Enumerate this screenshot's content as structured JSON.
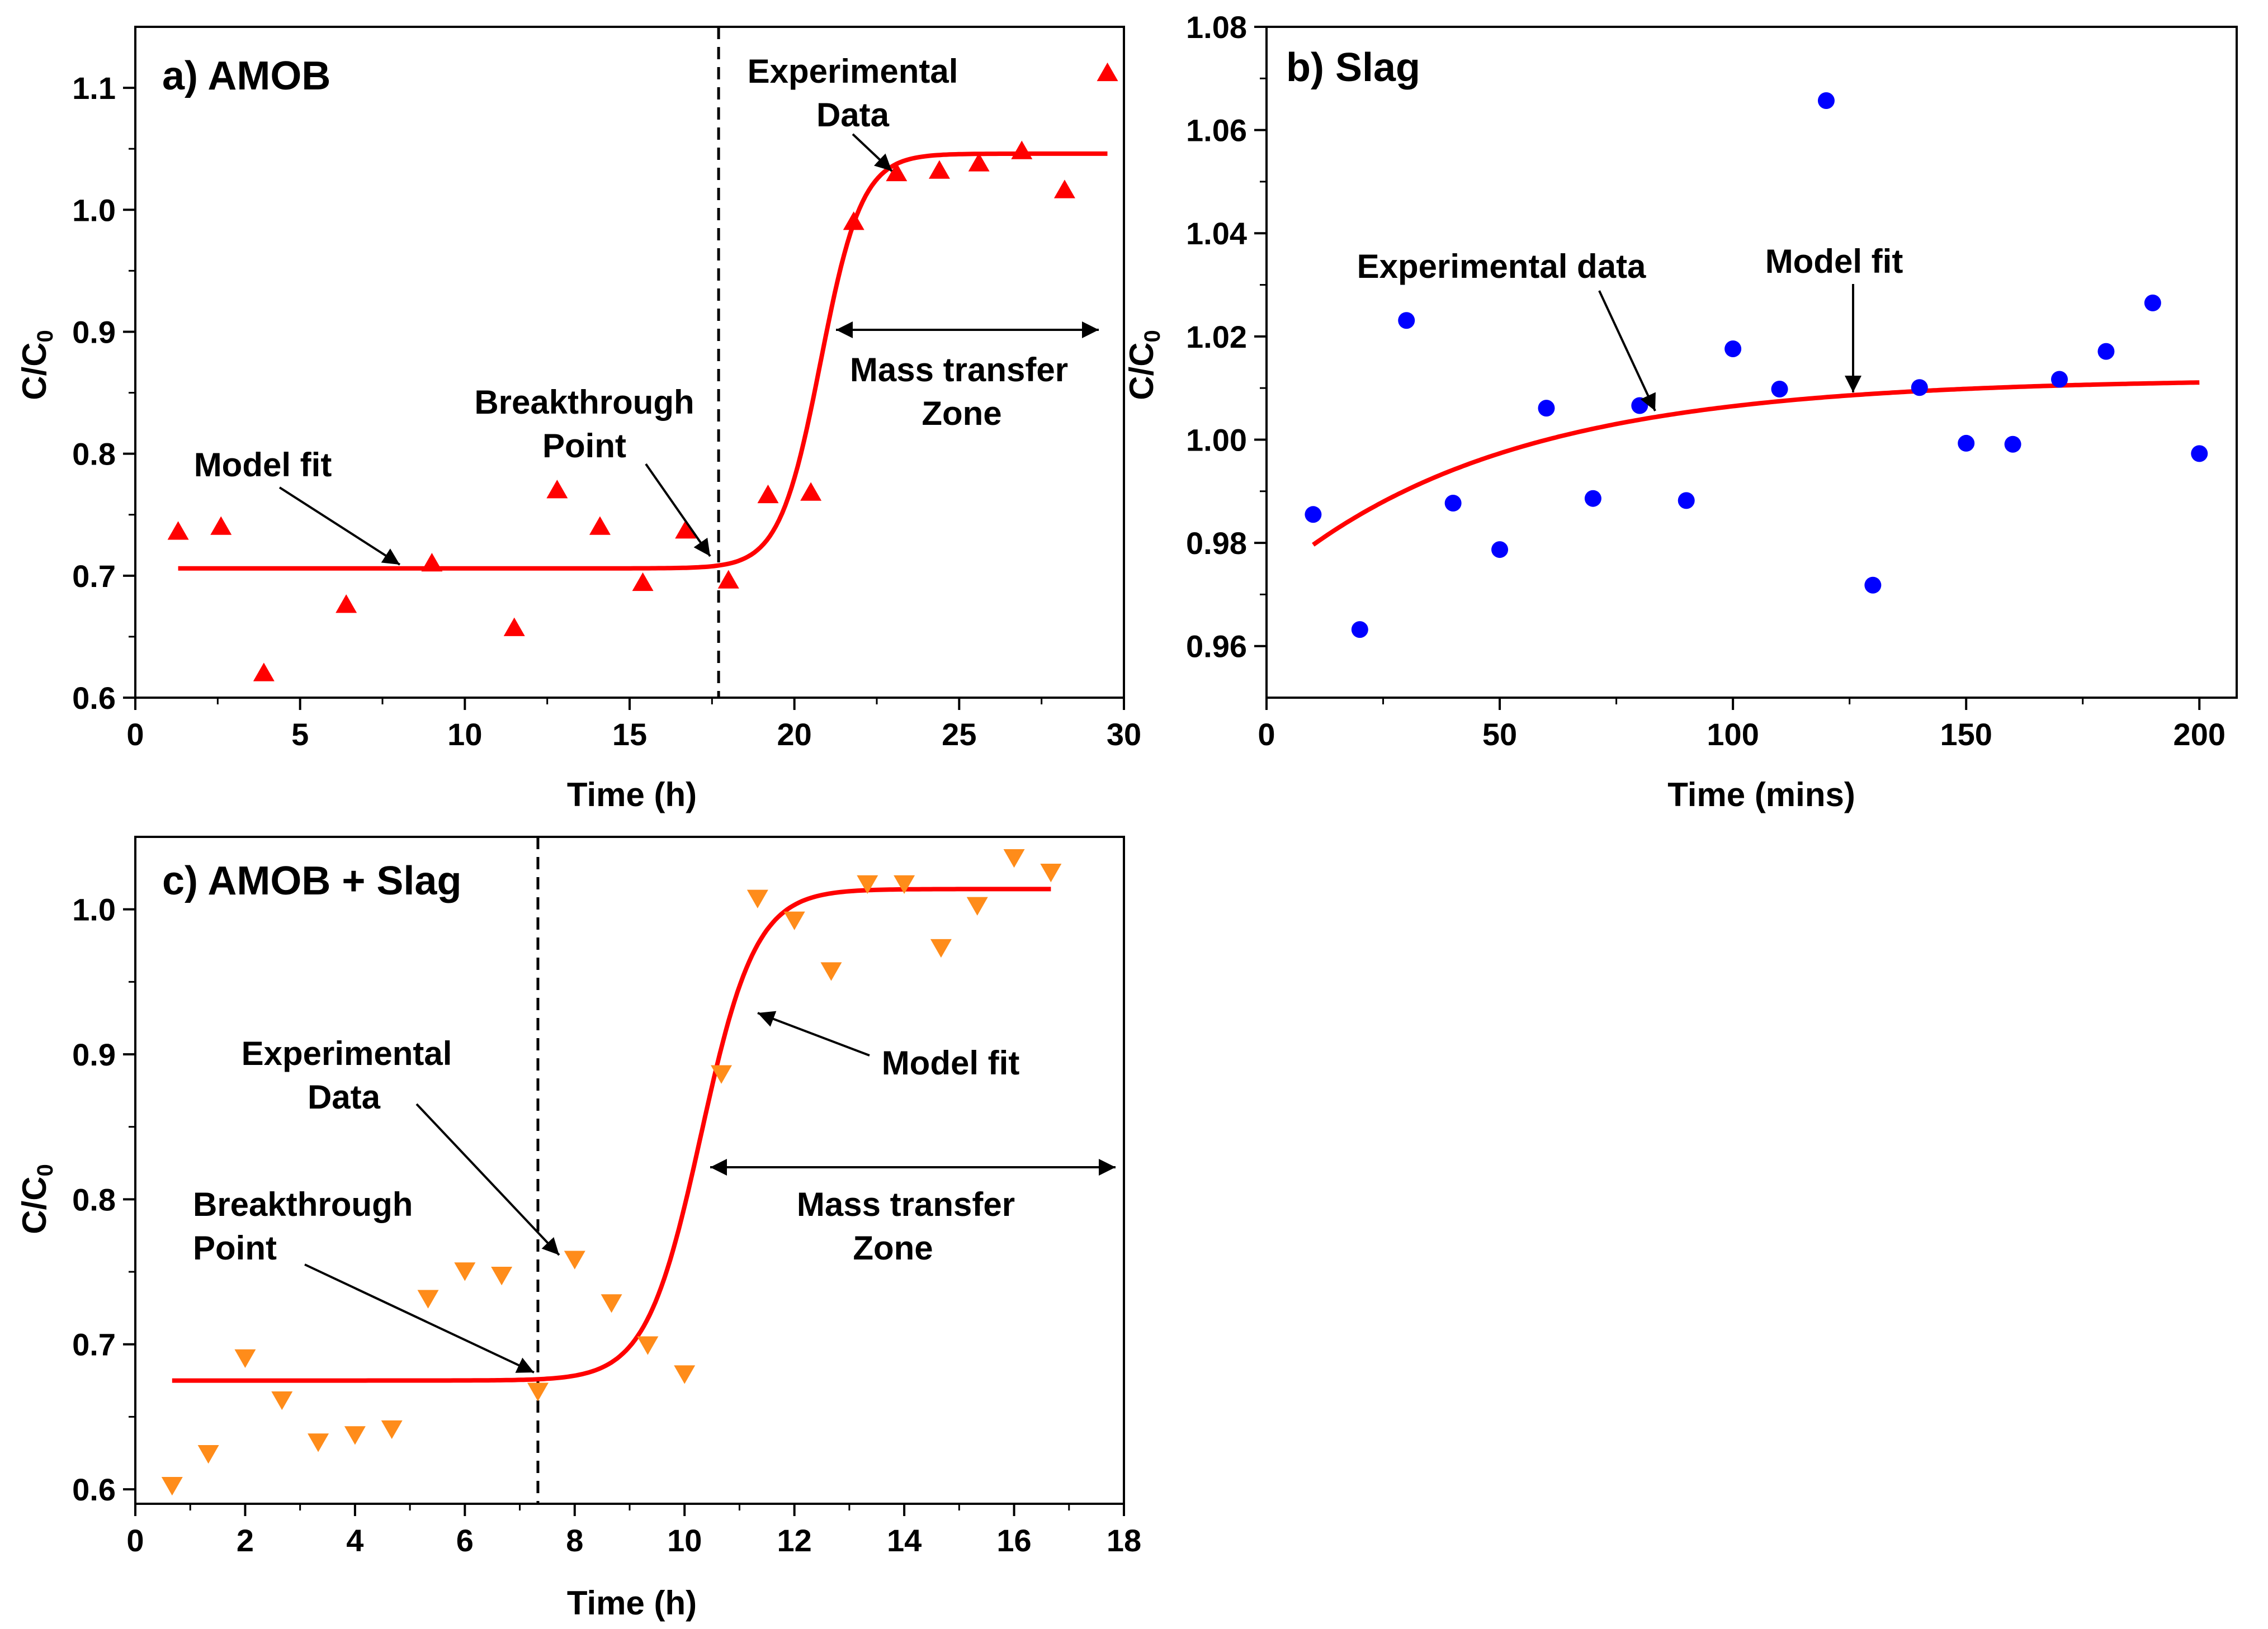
{
  "chart_data": [
    {
      "type": "scatter",
      "panel_label": "a) AMOB",
      "xlabel": "Time (h)",
      "ylabel_main": "C/C",
      "ylabel_sub": "0",
      "xlim": [
        0,
        30
      ],
      "ylim": [
        0.6,
        1.15
      ],
      "x_ticks": [
        0,
        5,
        10,
        15,
        20,
        25,
        30
      ],
      "x_tick_labels": [
        "0",
        "5",
        "10",
        "15",
        "20",
        "25",
        "30"
      ],
      "y_ticks": [
        0.6,
        0.7,
        0.8,
        0.9,
        1.0,
        1.1
      ],
      "y_tick_labels": [
        "0.6",
        "0.7",
        "0.8",
        "0.9",
        "1.0",
        "1.1"
      ],
      "marker": "triangle-up",
      "marker_color": "#ff0000",
      "fit_color": "#ff0000",
      "series": [
        {
          "name": "Experimental Data",
          "x": [
            1.3,
            2.6,
            3.9,
            6.4,
            9.0,
            11.5,
            12.8,
            14.1,
            15.4,
            16.7,
            18.0,
            19.2,
            20.5,
            21.8,
            23.1,
            24.4,
            25.6,
            26.9,
            28.2,
            29.5
          ],
          "y": [
            0.736,
            0.74,
            0.62,
            0.676,
            0.71,
            0.657,
            0.77,
            0.74,
            0.694,
            0.737,
            0.696,
            0.766,
            0.768,
            0.99,
            1.03,
            1.032,
            1.038,
            1.048,
            1.016,
            1.112
          ]
        },
        {
          "name": "Model fit",
          "model": "logistic",
          "y_low": 0.706,
          "y_high": 1.046,
          "midpoint": 20.8,
          "steepness": 1.6,
          "x_range": [
            1.3,
            29.5
          ]
        }
      ],
      "vline": 17.7,
      "annotations": [
        {
          "text": "Experimental",
          "text2": "Data"
        },
        {
          "text": "Breakthrough",
          "text2": "Point"
        },
        {
          "text": "Model fit",
          "text2": ""
        },
        {
          "text": "Mass transfer",
          "text2": "Zone"
        }
      ]
    },
    {
      "type": "scatter",
      "panel_label": "b) Slag",
      "xlabel": "Time (mins)",
      "ylabel_main": "C/C",
      "ylabel_sub": "0",
      "xlim": [
        0,
        208
      ],
      "ylim": [
        0.95,
        1.08
      ],
      "x_ticks": [
        0,
        50,
        100,
        150,
        200
      ],
      "x_tick_labels": [
        "0",
        "50",
        "100",
        "150",
        "200"
      ],
      "y_ticks": [
        0.96,
        0.98,
        1.0,
        1.02,
        1.04,
        1.06,
        1.08
      ],
      "y_tick_labels": [
        "0.96",
        "0.98",
        "1.00",
        "1.02",
        "1.04",
        "1.06",
        "1.08"
      ],
      "marker": "circle",
      "marker_color": "#0000ff",
      "fit_color": "#ff0000",
      "series": [
        {
          "name": "Experimental data",
          "x": [
            10,
            20,
            30,
            40,
            50,
            60,
            70,
            80,
            90,
            100,
            110,
            120,
            130,
            140,
            150,
            160,
            170,
            180,
            190,
            200
          ],
          "y": [
            0.9855,
            0.9632,
            1.0231,
            0.9877,
            0.9787,
            1.0061,
            0.9886,
            1.0066,
            0.9882,
            1.0176,
            1.0098,
            1.0657,
            0.9718,
            1.0101,
            0.9993,
            0.9991,
            1.0117,
            1.0171,
            1.0265,
            0.9973
          ]
        },
        {
          "name": "Model fit",
          "model": "exponential",
          "y_low": 0.9725,
          "y_high": 1.0118,
          "rate": 0.02,
          "x_range": [
            10,
            200
          ]
        }
      ],
      "annotations": [
        {
          "text": "Experimental data",
          "text2": ""
        },
        {
          "text": "Model fit",
          "text2": ""
        }
      ]
    },
    {
      "type": "scatter",
      "panel_label": "c) AMOB + Slag",
      "xlabel": "Time (h)",
      "ylabel_main": "C/C",
      "ylabel_sub": "0",
      "xlim": [
        0,
        18
      ],
      "ylim": [
        0.59,
        1.05
      ],
      "x_ticks": [
        0,
        2,
        4,
        6,
        8,
        10,
        12,
        14,
        16,
        18
      ],
      "x_tick_labels": [
        "0",
        "2",
        "4",
        "6",
        "8",
        "10",
        "12",
        "14",
        "16",
        "18"
      ],
      "y_ticks": [
        0.6,
        0.7,
        0.8,
        0.9,
        1.0
      ],
      "y_tick_labels": [
        "0.6",
        "0.7",
        "0.8",
        "0.9",
        "1.0"
      ],
      "marker": "triangle-down",
      "marker_color": "#ff8c1a",
      "fit_color": "#ff0000",
      "series": [
        {
          "name": "Experimental Data",
          "x": [
            0.67,
            1.33,
            2.0,
            2.67,
            3.33,
            4.0,
            4.67,
            5.33,
            6.0,
            6.67,
            7.33,
            8.0,
            8.67,
            9.33,
            10.0,
            10.67,
            11.33,
            12.0,
            12.67,
            13.33,
            14.0,
            14.67,
            15.33,
            16.0,
            16.67
          ],
          "y": [
            0.603,
            0.625,
            0.691,
            0.662,
            0.633,
            0.638,
            0.642,
            0.732,
            0.751,
            0.748,
            0.668,
            0.759,
            0.729,
            0.7,
            0.68,
            0.887,
            1.008,
            0.993,
            0.958,
            1.018,
            1.018,
            0.974,
            1.003,
            1.036,
            1.026
          ]
        },
        {
          "name": "Model fit",
          "model": "logistic",
          "y_low": 0.675,
          "y_high": 1.014,
          "midpoint": 10.3,
          "steepness": 2.0,
          "x_range": [
            0.67,
            16.67
          ]
        }
      ],
      "vline": 7.33,
      "annotations": [
        {
          "text": "Experimental",
          "text2": "Data"
        },
        {
          "text": "Breakthrough",
          "text2": "Point"
        },
        {
          "text": "Model fit",
          "text2": ""
        },
        {
          "text": "Mass transfer",
          "text2": "Zone"
        }
      ]
    }
  ]
}
